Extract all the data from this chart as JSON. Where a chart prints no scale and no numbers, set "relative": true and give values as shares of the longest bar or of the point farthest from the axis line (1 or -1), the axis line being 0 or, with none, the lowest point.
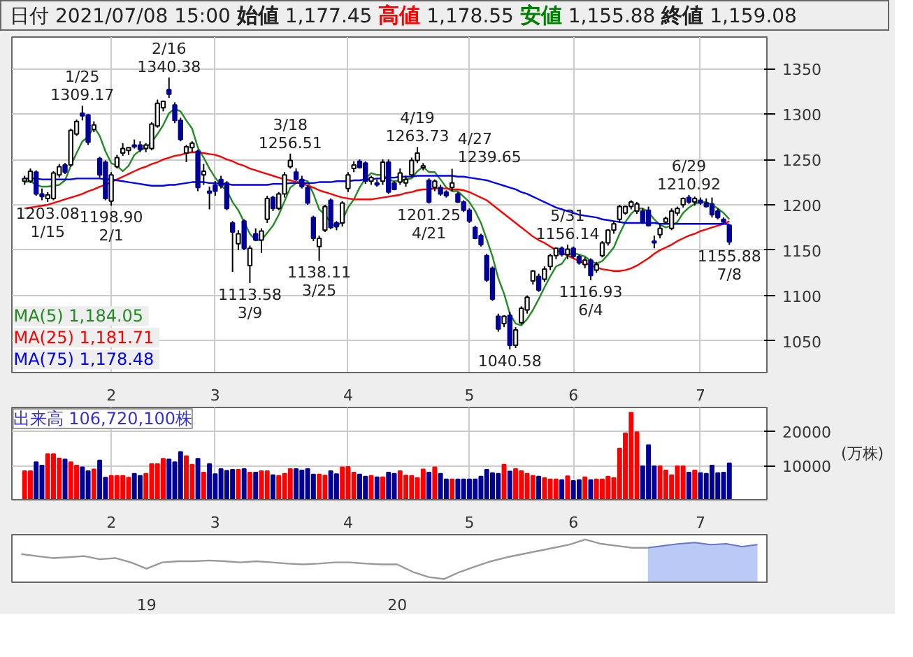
{
  "chart_data": [
    {
      "type": "candlestick",
      "title": "日付 2021/07/08 15:00 始値 1,177.45 高値 1,178.55 安値 1,155.88 終値 1,159.08",
      "categories": [
        null,
        null,
        null,
        null,
        null,
        null,
        null,
        null,
        null,
        null,
        null,
        null,
        null,
        null,
        null,
        "2",
        null,
        null,
        null,
        null,
        null,
        null,
        null,
        null,
        null,
        null,
        null,
        null,
        null,
        null,
        null,
        null,
        null,
        "3",
        null,
        null,
        null,
        null,
        null,
        null,
        null,
        null,
        null,
        null,
        null,
        null,
        null,
        null,
        null,
        null,
        null,
        null,
        null,
        null,
        null,
        null,
        "4",
        null,
        null,
        null,
        null,
        null,
        null,
        null,
        null,
        null,
        null,
        null,
        null,
        null,
        null,
        null,
        null,
        null,
        null,
        null,
        null,
        "5",
        null,
        null,
        null,
        null,
        null,
        null,
        null,
        null,
        null,
        null,
        null,
        null,
        null,
        null,
        null,
        null,
        null,
        "6",
        null,
        null,
        null,
        null,
        null,
        null,
        null,
        null,
        null,
        null,
        null,
        null,
        null,
        null,
        null,
        null,
        null,
        null,
        null,
        null,
        null,
        "7",
        null,
        null,
        null,
        null,
        null
      ],
      "ohlc": [
        [
          1226,
          1232,
          1222,
          1229
        ],
        [
          1226,
          1240,
          1224,
          1237
        ],
        [
          1236,
          1238,
          1210,
          1212
        ],
        [
          1212,
          1218,
          1205,
          1209
        ],
        [
          1207,
          1214,
          1203.08,
          1211
        ],
        [
          1207,
          1237,
          1205,
          1235
        ],
        [
          1233,
          1245,
          1230,
          1242
        ],
        [
          1244,
          1246,
          1234,
          1236
        ],
        [
          1244,
          1284,
          1242,
          1282
        ],
        [
          1278,
          1294,
          1276,
          1292
        ],
        [
          1301,
          1309.17,
          1293,
          1298
        ],
        [
          1299,
          1300,
          1266,
          1269
        ],
        [
          1283,
          1292,
          1280,
          1288
        ],
        [
          1251,
          1253,
          1230,
          1233
        ],
        [
          1247,
          1249,
          1205,
          1207
        ],
        [
          1204,
          1236,
          1198.9,
          1233
        ],
        [
          1242,
          1255,
          1240,
          1252
        ],
        [
          1257,
          1268,
          1254,
          1262
        ],
        [
          1260,
          1264,
          1255,
          1263
        ],
        [
          1266,
          1272,
          1262,
          1264
        ],
        [
          1266,
          1270,
          1258,
          1261
        ],
        [
          1262,
          1268,
          1258,
          1266
        ],
        [
          1262,
          1291,
          1260,
          1289
        ],
        [
          1287,
          1316,
          1285,
          1312
        ],
        [
          1307,
          1315,
          1303,
          1314
        ],
        [
          1327,
          1340.38,
          1318,
          1322
        ],
        [
          1310,
          1313,
          1290,
          1293
        ],
        [
          1293,
          1296,
          1270,
          1272
        ],
        [
          1257,
          1266,
          1247,
          1264
        ],
        [
          1263,
          1270,
          1258,
          1268
        ],
        [
          1259,
          1261,
          1215,
          1219
        ],
        [
          1233,
          1245,
          1222,
          1237
        ],
        [
          1215,
          1220,
          1195,
          1213
        ],
        [
          1222,
          1226,
          1210,
          1215
        ],
        [
          1228,
          1232,
          1218,
          1221
        ],
        [
          1224,
          1226,
          1194,
          1196
        ],
        [
          1180,
          1182,
          1126,
          1170
        ],
        [
          1157,
          1172,
          1150,
          1168
        ],
        [
          1182,
          1184,
          1150,
          1152
        ],
        [
          1133,
          1155,
          1113.58,
          1152
        ],
        [
          1168,
          1174,
          1160,
          1161
        ],
        [
          1161,
          1174,
          1147,
          1171
        ],
        [
          1184,
          1210,
          1180,
          1207
        ],
        [
          1208,
          1210,
          1193,
          1196
        ],
        [
          1196,
          1214,
          1194,
          1212
        ],
        [
          1212,
          1236,
          1208,
          1233
        ],
        [
          1242,
          1256.51,
          1240,
          1249
        ],
        [
          1236,
          1240,
          1226,
          1228
        ],
        [
          1228,
          1232,
          1218,
          1220
        ],
        [
          1219,
          1222,
          1200,
          1202
        ],
        [
          1186,
          1188,
          1160,
          1163
        ],
        [
          1154,
          1166,
          1138.11,
          1163
        ],
        [
          1172,
          1200,
          1170,
          1198
        ],
        [
          1205,
          1207,
          1173,
          1175
        ],
        [
          1180,
          1182,
          1172,
          1176
        ],
        [
          1180,
          1204,
          1176,
          1202
        ],
        [
          1218,
          1236,
          1214,
          1233
        ],
        [
          1240,
          1248,
          1236,
          1244
        ],
        [
          1248,
          1250,
          1240,
          1241
        ],
        [
          1246,
          1248,
          1223,
          1226
        ],
        [
          1226,
          1232,
          1222,
          1230
        ],
        [
          1224,
          1228,
          1220,
          1222
        ],
        [
          1226,
          1250,
          1222,
          1247
        ],
        [
          1247,
          1250,
          1212,
          1214
        ],
        [
          1224,
          1226,
          1216,
          1217
        ],
        [
          1225,
          1240,
          1222,
          1235
        ],
        [
          1224,
          1232,
          1220,
          1228
        ],
        [
          1233,
          1252,
          1230,
          1249
        ],
        [
          1249,
          1263.73,
          1246,
          1257
        ],
        [
          1241,
          1246,
          1238,
          1243
        ],
        [
          1227,
          1229,
          1201.25,
          1203
        ],
        [
          1219,
          1228,
          1215,
          1226
        ],
        [
          1219,
          1222,
          1210,
          1212
        ],
        [
          1214,
          1216,
          1208,
          1210
        ],
        [
          1219,
          1239.65,
          1215,
          1224
        ],
        [
          1212,
          1214,
          1202,
          1203
        ],
        [
          1203,
          1205,
          1192,
          1194
        ],
        [
          1194,
          1196,
          1180,
          1182
        ],
        [
          1175,
          1177,
          1162,
          1163
        ],
        [
          1166,
          1168,
          1154,
          1156
        ],
        [
          1144,
          1146,
          1115,
          1117
        ],
        [
          1130,
          1132,
          1094,
          1096
        ],
        [
          1077,
          1080,
          1060,
          1063
        ],
        [
          1069,
          1078,
          1065,
          1077
        ],
        [
          1078,
          1082,
          1040.58,
          1045
        ],
        [
          1045,
          1065,
          1042,
          1062
        ],
        [
          1070,
          1088,
          1068,
          1086
        ],
        [
          1084,
          1100,
          1080,
          1098
        ],
        [
          1116,
          1128,
          1112,
          1127
        ],
        [
          1121,
          1124,
          1104,
          1106
        ],
        [
          1118,
          1132,
          1115,
          1129
        ],
        [
          1132,
          1146,
          1128,
          1144
        ],
        [
          1144,
          1153,
          1140,
          1152
        ],
        [
          1152,
          1154,
          1143,
          1145
        ],
        [
          1145,
          1156.14,
          1140,
          1151
        ],
        [
          1152,
          1154,
          1141,
          1143
        ],
        [
          1143,
          1145,
          1134,
          1136
        ],
        [
          1134,
          1142,
          1130,
          1139
        ],
        [
          1139,
          1141,
          1116.93,
          1122
        ],
        [
          1128,
          1137,
          1125,
          1134
        ],
        [
          1144,
          1160,
          1142,
          1158
        ],
        [
          1158,
          1173,
          1155,
          1172
        ],
        [
          1172,
          1182,
          1168,
          1179
        ],
        [
          1184,
          1200,
          1180,
          1198
        ],
        [
          1191,
          1199,
          1189,
          1198
        ],
        [
          1198,
          1205,
          1195,
          1203
        ],
        [
          1193,
          1203,
          1190,
          1201
        ],
        [
          1193,
          1196,
          1179,
          1181
        ],
        [
          1194,
          1198,
          1176,
          1177
        ],
        [
          1160,
          1166,
          1152,
          1158
        ],
        [
          1167,
          1178,
          1163,
          1174
        ],
        [
          1181,
          1187,
          1179,
          1185
        ],
        [
          1174,
          1196,
          1172,
          1193
        ],
        [
          1191,
          1198,
          1188,
          1196
        ],
        [
          1200,
          1208,
          1197,
          1207
        ],
        [
          1208,
          1210.92,
          1201,
          1203
        ],
        [
          1203,
          1209,
          1199,
          1207
        ],
        [
          1205,
          1208,
          1200,
          1202
        ],
        [
          1202,
          1207,
          1197,
          1198
        ],
        [
          1201,
          1208,
          1186,
          1189
        ],
        [
          1193,
          1196,
          1184,
          1186
        ],
        [
          1184,
          1186,
          1179,
          1181
        ],
        [
          1177.45,
          1178.55,
          1155.88,
          1159.08
        ]
      ],
      "colors": [
        "#ffffff",
        "#ffffff",
        "#000099",
        "#000099",
        "#ffffff",
        "#ffffff",
        "#ffffff",
        "#000099",
        "#ffffff",
        "#ffffff",
        "#000099",
        "#000099",
        "#ffffff",
        "#000099",
        "#000099",
        "#ffffff",
        "#ffffff",
        "#ffffff",
        "#ffffff",
        "#000099",
        "#000099",
        "#ffffff",
        "#ffffff",
        "#ffffff",
        "#ffffff",
        "#000099",
        "#000099",
        "#000099",
        "#ffffff",
        "#ffffff",
        "#000099",
        "#ffffff",
        "#000099",
        "#000099",
        "#000099",
        "#000099",
        "#000099",
        "#ffffff",
        "#000099",
        "#ffffff",
        "#000099",
        "#ffffff",
        "#ffffff",
        "#000099",
        "#ffffff",
        "#ffffff",
        "#ffffff",
        "#000099",
        "#000099",
        "#000099",
        "#000099",
        "#ffffff",
        "#ffffff",
        "#000099",
        "#000099",
        "#ffffff",
        "#ffffff",
        "#ffffff",
        "#000099",
        "#000099",
        "#ffffff",
        "#000099",
        "#ffffff",
        "#000099",
        "#000099",
        "#ffffff",
        "#ffffff",
        "#ffffff",
        "#ffffff",
        "#ffffff",
        "#000099",
        "#ffffff",
        "#000099",
        "#000099",
        "#ffffff",
        "#000099",
        "#000099",
        "#000099",
        "#000099",
        "#000099",
        "#000099",
        "#000099",
        "#000099",
        "#ffffff",
        "#000099",
        "#ffffff",
        "#ffffff",
        "#ffffff",
        "#ffffff",
        "#000099",
        "#ffffff",
        "#ffffff",
        "#ffffff",
        "#000099",
        "#ffffff",
        "#000099",
        "#000099",
        "#ffffff",
        "#000099",
        "#ffffff",
        "#ffffff",
        "#ffffff",
        "#ffffff",
        "#ffffff",
        "#ffffff",
        "#ffffff",
        "#ffffff",
        "#000099",
        "#000099",
        "#000099",
        "#ffffff",
        "#ffffff",
        "#ffffff",
        "#ffffff",
        "#ffffff",
        "#000099",
        "#ffffff",
        "#000099",
        "#000099",
        "#000099",
        "#000099",
        "#000099",
        "#000099"
      ],
      "value_labels": [
        null,
        null,
        null,
        null,
        "1203.08\n1/15",
        null,
        null,
        null,
        null,
        null,
        "1/25\n1309.17",
        null,
        null,
        null,
        null,
        "1198.90\n2/1",
        null,
        null,
        null,
        null,
        null,
        null,
        null,
        null,
        null,
        "2/16\n1340.38",
        null,
        null,
        null,
        null,
        null,
        null,
        null,
        null,
        null,
        null,
        null,
        null,
        null,
        "1113.58\n3/9",
        null,
        null,
        null,
        null,
        null,
        null,
        "3/18\n1256.51",
        null,
        null,
        null,
        null,
        "1138.11\n3/25",
        null,
        null,
        null,
        null,
        null,
        null,
        null,
        null,
        null,
        null,
        null,
        null,
        null,
        null,
        null,
        null,
        "4/19\n1263.73",
        null,
        "1201.25\n4/21",
        null,
        null,
        null,
        "4/27\n1239.65",
        null,
        null,
        null,
        null,
        null,
        null,
        null,
        null,
        null,
        "1040.58\n5/17",
        null,
        null,
        null,
        null,
        null,
        null,
        null,
        null,
        null,
        "5/31\n1156.14",
        null,
        null,
        null,
        "1116.93\n6/4",
        null,
        null,
        null,
        null,
        null,
        null,
        null,
        null,
        null,
        null,
        null,
        null,
        null,
        null,
        null,
        null,
        "6/29\n1210.92",
        null,
        null,
        null,
        null,
        null,
        null,
        "1155.88\n7/8"
      ],
      "series": [
        {
          "type": "line",
          "name": "MA(5)  1,184.05",
          "color": "#228b22",
          "values": [
            1225,
            1226,
            1222,
            1220,
            1220,
            1221,
            1222,
            1227,
            1243,
            1257,
            1270,
            1275,
            1286,
            1276,
            1259,
            1246,
            1243,
            1237,
            1243,
            1255,
            1260,
            1263,
            1269,
            1278,
            1288,
            1301,
            1306,
            1303,
            1293,
            1284,
            1263,
            1252,
            1240,
            1230,
            1221,
            1216,
            1203,
            1194,
            1181,
            1168,
            1161,
            1161,
            1169,
            1177,
            1189,
            1204,
            1219,
            1224,
            1228,
            1226,
            1212,
            1195,
            1189,
            1180,
            1175,
            1183,
            1197,
            1206,
            1219,
            1229,
            1235,
            1233,
            1233,
            1228,
            1226,
            1227,
            1228,
            1229,
            1237,
            1242,
            1236,
            1236,
            1228,
            1219,
            1215,
            1215,
            1209,
            1203,
            1193,
            1180,
            1162,
            1143,
            1119,
            1102,
            1080,
            1069,
            1067,
            1074,
            1084,
            1096,
            1109,
            1121,
            1132,
            1135,
            1144,
            1147,
            1145,
            1143,
            1138,
            1135,
            1138,
            1145,
            1153,
            1168,
            1181,
            1190,
            1196,
            1196,
            1192,
            1184,
            1178,
            1175,
            1177,
            1181,
            1191,
            1197,
            1201,
            1203,
            1203,
            1200,
            1196,
            1191,
            1184.05
          ]
        },
        {
          "type": "line",
          "name": "MA(25)  1,181.71",
          "color": "#ff0000",
          "values": [
            1196,
            1197,
            1198,
            1199,
            1200,
            1202,
            1204,
            1206,
            1208,
            1210,
            1212,
            1215,
            1217,
            1220,
            1222,
            1225,
            1228,
            1231,
            1234,
            1237,
            1240,
            1242,
            1245,
            1247,
            1250,
            1252,
            1254,
            1255,
            1257,
            1258,
            1258,
            1257,
            1256,
            1255,
            1253,
            1250,
            1248,
            1245,
            1243,
            1240,
            1238,
            1236,
            1234,
            1232,
            1230,
            1228,
            1227,
            1225,
            1224,
            1221,
            1219,
            1216,
            1214,
            1212,
            1210,
            1208,
            1207,
            1206,
            1206,
            1206,
            1206,
            1207,
            1208,
            1209,
            1210,
            1211,
            1213,
            1214,
            1216,
            1217,
            1217,
            1218,
            1218,
            1218,
            1217,
            1217,
            1216,
            1214,
            1211,
            1208,
            1205,
            1200,
            1195,
            1190,
            1185,
            1180,
            1175,
            1170,
            1165,
            1161,
            1158,
            1154,
            1150,
            1147,
            1144,
            1141,
            1138,
            1136,
            1133,
            1131,
            1129,
            1128,
            1127,
            1127,
            1128,
            1130,
            1133,
            1137,
            1141,
            1146,
            1150,
            1153,
            1156,
            1160,
            1163,
            1166,
            1168,
            1171,
            1173,
            1175,
            1177,
            1179,
            1181.71
          ]
        },
        {
          "type": "line",
          "name": "MA(75)  1,178.48",
          "color": "#0000ff",
          "values": [
            1229,
            1229,
            1229,
            1228,
            1228,
            1228,
            1228,
            1228,
            1228,
            1229,
            1229,
            1229,
            1229,
            1229,
            1228,
            1228,
            1227,
            1226,
            1225,
            1224,
            1223,
            1222,
            1221,
            1221,
            1221,
            1222,
            1222,
            1223,
            1224,
            1225,
            1225,
            1225,
            1224,
            1224,
            1223,
            1223,
            1222,
            1222,
            1222,
            1222,
            1222,
            1222,
            1222,
            1223,
            1223,
            1223,
            1224,
            1224,
            1224,
            1224,
            1224,
            1225,
            1225,
            1225,
            1226,
            1226,
            1226,
            1227,
            1227,
            1228,
            1228,
            1229,
            1229,
            1230,
            1230,
            1231,
            1231,
            1231,
            1232,
            1232,
            1232,
            1232,
            1232,
            1232,
            1232,
            1231,
            1231,
            1230,
            1229,
            1228,
            1227,
            1225,
            1223,
            1221,
            1219,
            1217,
            1214,
            1212,
            1209,
            1206,
            1203,
            1200,
            1197,
            1195,
            1193,
            1191,
            1189,
            1188,
            1187,
            1186,
            1184,
            1183,
            1182,
            1181,
            1180,
            1180,
            1180,
            1180,
            1180,
            1180,
            1179,
            1179,
            1179,
            1179,
            1179,
            1179,
            1179,
            1179,
            1179,
            1179,
            1179,
            1179,
            1178.48
          ]
        }
      ],
      "ylim": [
        1015,
        1385
      ],
      "yticks": [
        1050,
        1100,
        1150,
        1200,
        1250,
        1300,
        1350
      ],
      "grid": true,
      "legend": "bottom left"
    },
    {
      "type": "bar",
      "ylabel": "(万株)",
      "annotations": [
        "出来高 106,720,100株"
      ],
      "categories": [
        null,
        null,
        null,
        null,
        null,
        null,
        null,
        null,
        null,
        null,
        null,
        null,
        null,
        null,
        null,
        "2",
        null,
        null,
        null,
        null,
        null,
        null,
        null,
        null,
        null,
        null,
        null,
        null,
        null,
        null,
        null,
        null,
        null,
        "3",
        null,
        null,
        null,
        null,
        null,
        null,
        null,
        null,
        null,
        null,
        null,
        null,
        null,
        null,
        null,
        null,
        null,
        null,
        null,
        null,
        null,
        null,
        "4",
        null,
        null,
        null,
        null,
        null,
        null,
        null,
        null,
        null,
        null,
        null,
        null,
        null,
        null,
        null,
        null,
        null,
        null,
        null,
        null,
        "5",
        null,
        null,
        null,
        null,
        null,
        null,
        null,
        null,
        null,
        null,
        null,
        null,
        null,
        null,
        null,
        null,
        null,
        "6",
        null,
        null,
        null,
        null,
        null,
        null,
        null,
        null,
        null,
        null,
        null,
        null,
        null,
        null,
        null,
        null,
        null,
        null,
        null,
        null,
        null,
        "7",
        null,
        null,
        null,
        null,
        null
      ],
      "values": [
        8400,
        8400,
        11000,
        10000,
        13400,
        13400,
        12100,
        11800,
        11000,
        10000,
        9500,
        8400,
        8900,
        11500,
        6500,
        7000,
        7000,
        7000,
        6500,
        7600,
        7000,
        7600,
        10500,
        10500,
        12000,
        11800,
        11000,
        14000,
        12800,
        10300,
        12000,
        8000,
        10500,
        7500,
        9000,
        8500,
        8800,
        8800,
        9000,
        8000,
        8000,
        8400,
        8400,
        7200,
        7000,
        7600,
        9000,
        9000,
        8600,
        9000,
        7400,
        7400,
        7100,
        8400,
        7500,
        9500,
        9600,
        8000,
        7400,
        6800,
        7000,
        6600,
        6600,
        8000,
        7600,
        8400,
        7100,
        7000,
        6400,
        8900,
        8000,
        9500,
        7600,
        6000,
        6000,
        6000,
        6000,
        6000,
        6000,
        6800,
        8800,
        7800,
        7600,
        10300,
        8300,
        9000,
        8400,
        7600,
        7000,
        6800,
        6400,
        6000,
        6000,
        5800,
        6900,
        5500,
        5800,
        6600,
        5800,
        6000,
        6000,
        6800,
        6400,
        15000,
        19500,
        25500,
        19800,
        9800,
        16000,
        9800,
        9800,
        8600,
        7200,
        9800,
        9800,
        8000,
        8600,
        7800,
        7600,
        10000,
        7800,
        8000,
        10672
      ],
      "colors": [
        "#ff0000",
        "#ff0000",
        "#000099",
        "#000099",
        "#ff0000",
        "#ff0000",
        "#ff0000",
        "#000099",
        "#ff0000",
        "#ff0000",
        "#000099",
        "#000099",
        "#ff0000",
        "#000099",
        "#000099",
        "#ff0000",
        "#ff0000",
        "#ff0000",
        "#ff0000",
        "#000099",
        "#000099",
        "#ff0000",
        "#ff0000",
        "#ff0000",
        "#ff0000",
        "#000099",
        "#000099",
        "#000099",
        "#ff0000",
        "#ff0000",
        "#000099",
        "#ff0000",
        "#000099",
        "#000099",
        "#000099",
        "#000099",
        "#000099",
        "#ff0000",
        "#000099",
        "#ff0000",
        "#000099",
        "#ff0000",
        "#ff0000",
        "#000099",
        "#ff0000",
        "#ff0000",
        "#ff0000",
        "#000099",
        "#000099",
        "#000099",
        "#000099",
        "#ff0000",
        "#ff0000",
        "#000099",
        "#000099",
        "#ff0000",
        "#ff0000",
        "#ff0000",
        "#000099",
        "#000099",
        "#ff0000",
        "#000099",
        "#ff0000",
        "#000099",
        "#000099",
        "#ff0000",
        "#ff0000",
        "#ff0000",
        "#ff0000",
        "#ff0000",
        "#000099",
        "#ff0000",
        "#000099",
        "#000099",
        "#ff0000",
        "#000099",
        "#000099",
        "#000099",
        "#000099",
        "#000099",
        "#000099",
        "#000099",
        "#000099",
        "#ff0000",
        "#000099",
        "#ff0000",
        "#ff0000",
        "#ff0000",
        "#ff0000",
        "#000099",
        "#ff0000",
        "#ff0000",
        "#ff0000",
        "#000099",
        "#ff0000",
        "#000099",
        "#000099",
        "#ff0000",
        "#000099",
        "#ff0000",
        "#ff0000",
        "#ff0000",
        "#ff0000",
        "#ff0000",
        "#ff0000",
        "#ff0000",
        "#ff0000",
        "#000099",
        "#000099",
        "#000099",
        "#ff0000",
        "#ff0000",
        "#ff0000",
        "#ff0000",
        "#ff0000",
        "#000099",
        "#ff0000",
        "#000099",
        "#000099",
        "#000099",
        "#000099",
        "#000099",
        "#000099"
      ],
      "ylim": [
        0,
        27000
      ],
      "yticks": [
        10000,
        20000
      ],
      "grid": true
    },
    {
      "type": "area",
      "relative": true,
      "tick_labels": "x",
      "categories": [
        null,
        null,
        null,
        null,
        null,
        null,
        null,
        null,
        "19",
        null,
        null,
        null,
        null,
        null,
        null,
        null,
        null,
        null,
        null,
        null,
        null,
        null,
        null,
        null,
        "20",
        null,
        null,
        null,
        null,
        null,
        null,
        null,
        null,
        null,
        null,
        null,
        null,
        null,
        null,
        null,
        null,
        null,
        null,
        null,
        null,
        null,
        null,
        null
      ],
      "series": [
        {
          "type": "line",
          "color": "#999999",
          "values": [
            0.63,
            0.58,
            0.53,
            0.55,
            0.58,
            0.5,
            0.53,
            0.42,
            0.26,
            0.42,
            0.45,
            0.45,
            0.47,
            0.45,
            0.42,
            0.45,
            0.42,
            0.39,
            0.37,
            0.39,
            0.42,
            0.42,
            0.39,
            0.37,
            0.37,
            0.18,
            0.05,
            0,
            0.18,
            0.32,
            0.45,
            0.55,
            0.63,
            0.71,
            0.79,
            0.87,
            1,
            0.89,
            0.84,
            0.79,
            0.79,
            null,
            null,
            null,
            null,
            null,
            null,
            null
          ]
        },
        {
          "type": "area",
          "color": "#b4c3f5",
          "values": [
            null,
            null,
            null,
            null,
            null,
            null,
            null,
            null,
            null,
            null,
            null,
            null,
            null,
            null,
            null,
            null,
            null,
            null,
            null,
            null,
            null,
            null,
            null,
            null,
            null,
            null,
            null,
            null,
            null,
            null,
            null,
            null,
            null,
            null,
            null,
            null,
            null,
            null,
            null,
            null,
            0.79,
            0.84,
            0.89,
            0.92,
            0.87,
            0.89,
            0.82,
            0.87
          ]
        }
      ]
    }
  ]
}
